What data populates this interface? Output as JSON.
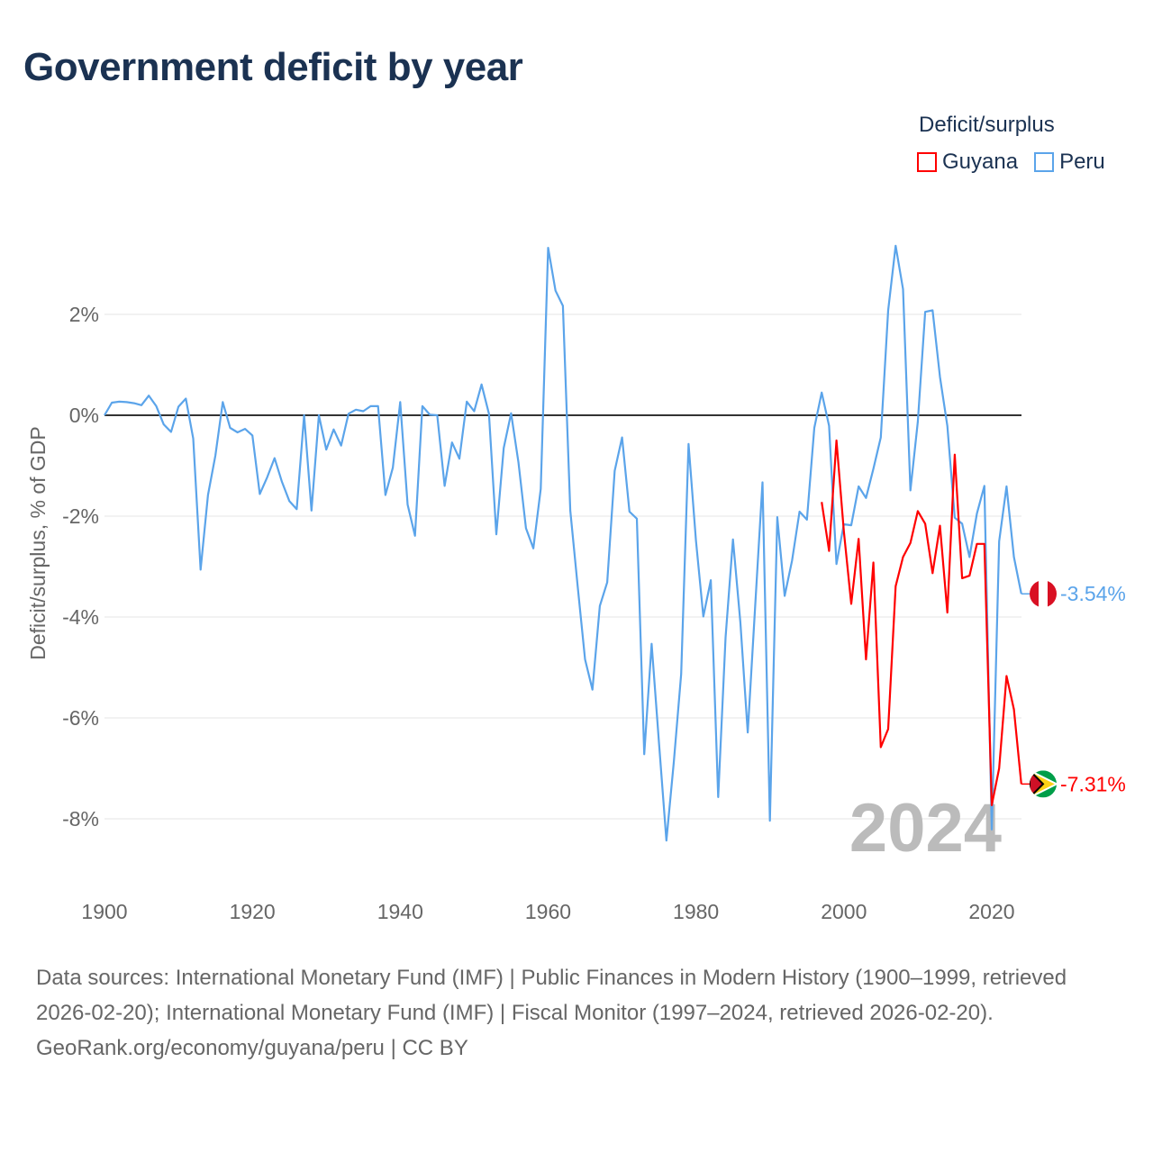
{
  "title": "Government deficit by year",
  "legend": {
    "title": "Deficit/surplus",
    "items": [
      {
        "label": "Guyana",
        "color": "#ff0000"
      },
      {
        "label": "Peru",
        "color": "#5ba4ea"
      }
    ]
  },
  "footer": {
    "sources": "Data sources: International Monetary Fund (IMF) | Public Finances in Modern History (1900–1999, retrieved 2026-02-20); International Monetary Fund (IMF) | Fiscal Monitor (1997–2024, retrieved 2026-02-20).",
    "credit": "GeoRank.org/economy/guyana/peru | CC BY"
  },
  "chart_data": {
    "type": "line",
    "title": "Government deficit by year",
    "xlabel": "",
    "ylabel": "Deficit/surplus, % of GDP",
    "xlim": [
      1900,
      2024
    ],
    "ylim": [
      -9,
      3.5
    ],
    "xticks": [
      1900,
      1920,
      1940,
      1960,
      1980,
      2000,
      2020
    ],
    "yticks": [
      2,
      0,
      -2,
      -4,
      -6,
      -8
    ],
    "ytick_labels": [
      "2%",
      "0%",
      "-2%",
      "-4%",
      "-6%",
      "-8%"
    ],
    "year_label": "2024",
    "series": [
      {
        "name": "Peru",
        "color": "#5ba4ea",
        "start_year": 1900,
        "end_label": "-3.54%",
        "flag": "peru",
        "values": [
          0,
          0.25,
          0.27,
          0.26,
          0.24,
          0.2,
          0.39,
          0.18,
          -0.18,
          -0.33,
          0.17,
          0.33,
          -0.46,
          -3.06,
          -1.58,
          -0.8,
          0.26,
          -0.25,
          -0.34,
          -0.27,
          -0.4,
          -1.56,
          -1.23,
          -0.85,
          -1.32,
          -1.7,
          -1.86,
          0,
          -1.89,
          0,
          -0.68,
          -0.28,
          -0.6,
          0.03,
          0.11,
          0.08,
          0.18,
          0.18,
          -1.58,
          -1.04,
          0.26,
          -1.77,
          -2.39,
          0.18,
          0.01,
          0,
          -1.4,
          -0.54,
          -0.86,
          0.27,
          0.08,
          0.61,
          0.03,
          -2.36,
          -0.65,
          0.04,
          -0.94,
          -2.24,
          -2.64,
          -1.46,
          3.32,
          2.47,
          2.17,
          -1.89,
          -3.39,
          -4.84,
          -5.44,
          -3.78,
          -3.31,
          -1.1,
          -0.44,
          -1.91,
          -2.05,
          -6.72,
          -4.53,
          -6.5,
          -8.43,
          -6.88,
          -5.13,
          -0.57,
          -2.48,
          -3.99,
          -3.27,
          -7.57,
          -4.4,
          -2.46,
          -4.1,
          -6.29,
          -3.8,
          -1.33,
          -8.04,
          -2.02,
          -3.58,
          -2.88,
          -1.91,
          -2.07,
          -0.25,
          0.45,
          -0.21,
          -2.95,
          -2.16,
          -2.18,
          -1.41,
          -1.64,
          -1.06,
          -0.44,
          2.08,
          3.36,
          2.5,
          -1.49,
          -0.13,
          2.05,
          2.08,
          0.76,
          -0.21,
          -2.03,
          -2.15,
          -2.81,
          -1.95,
          -1.4,
          -8.21,
          -2.5,
          -1.41,
          -2.81,
          -3.54
        ]
      },
      {
        "name": "Guyana",
        "color": "#ff0000",
        "start_year": 1997,
        "end_label": "-7.31%",
        "flag": "guyana",
        "values": [
          -1.72,
          -2.69,
          -0.5,
          -2.3,
          -3.74,
          -2.45,
          -4.84,
          -2.92,
          -6.58,
          -6.22,
          -3.39,
          -2.81,
          -2.53,
          -1.9,
          -2.15,
          -3.13,
          -2.19,
          -3.91,
          -0.78,
          -3.23,
          -3.18,
          -2.55,
          -2.55,
          -7.73,
          -7.0,
          -5.17,
          -5.83,
          -7.31
        ]
      }
    ]
  }
}
